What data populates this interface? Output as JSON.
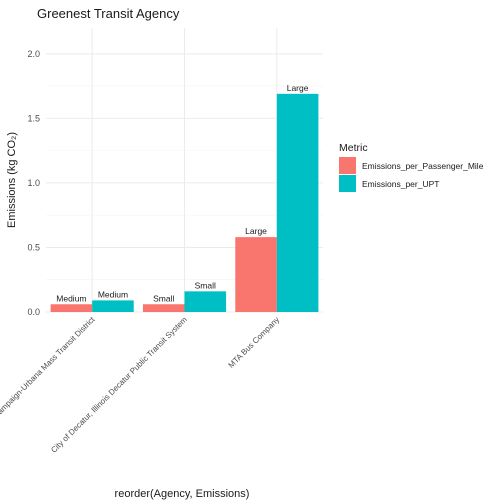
{
  "chart_data": {
    "type": "bar",
    "title": "Greenest Transit Agency",
    "xlabel": "reorder(Agency, Emissions)",
    "ylabel": "Emissions (kg CO₂)",
    "categories": [
      "Champaign-Urbana Mass Transit District",
      "City of Decatur, Illinois Decatur Public Transit System",
      "MTA Bus Company"
    ],
    "series": [
      {
        "name": "Emissions_per_Passenger_Mile",
        "color": "#F8766D",
        "values": [
          0.06,
          0.06,
          0.58
        ],
        "labels": [
          "Medium",
          "Small",
          "Large"
        ]
      },
      {
        "name": "Emissions_per_UPT",
        "color": "#00BFC4",
        "values": [
          0.09,
          0.16,
          1.69
        ],
        "labels": [
          "Medium",
          "Small",
          "Large"
        ]
      }
    ],
    "ylim": [
      0,
      2.2
    ],
    "yticks": [
      "0.0",
      "0.5",
      "1.0",
      "1.5",
      "2.0"
    ],
    "grid": true,
    "legend": {
      "title": "Metric",
      "position": "right"
    }
  }
}
